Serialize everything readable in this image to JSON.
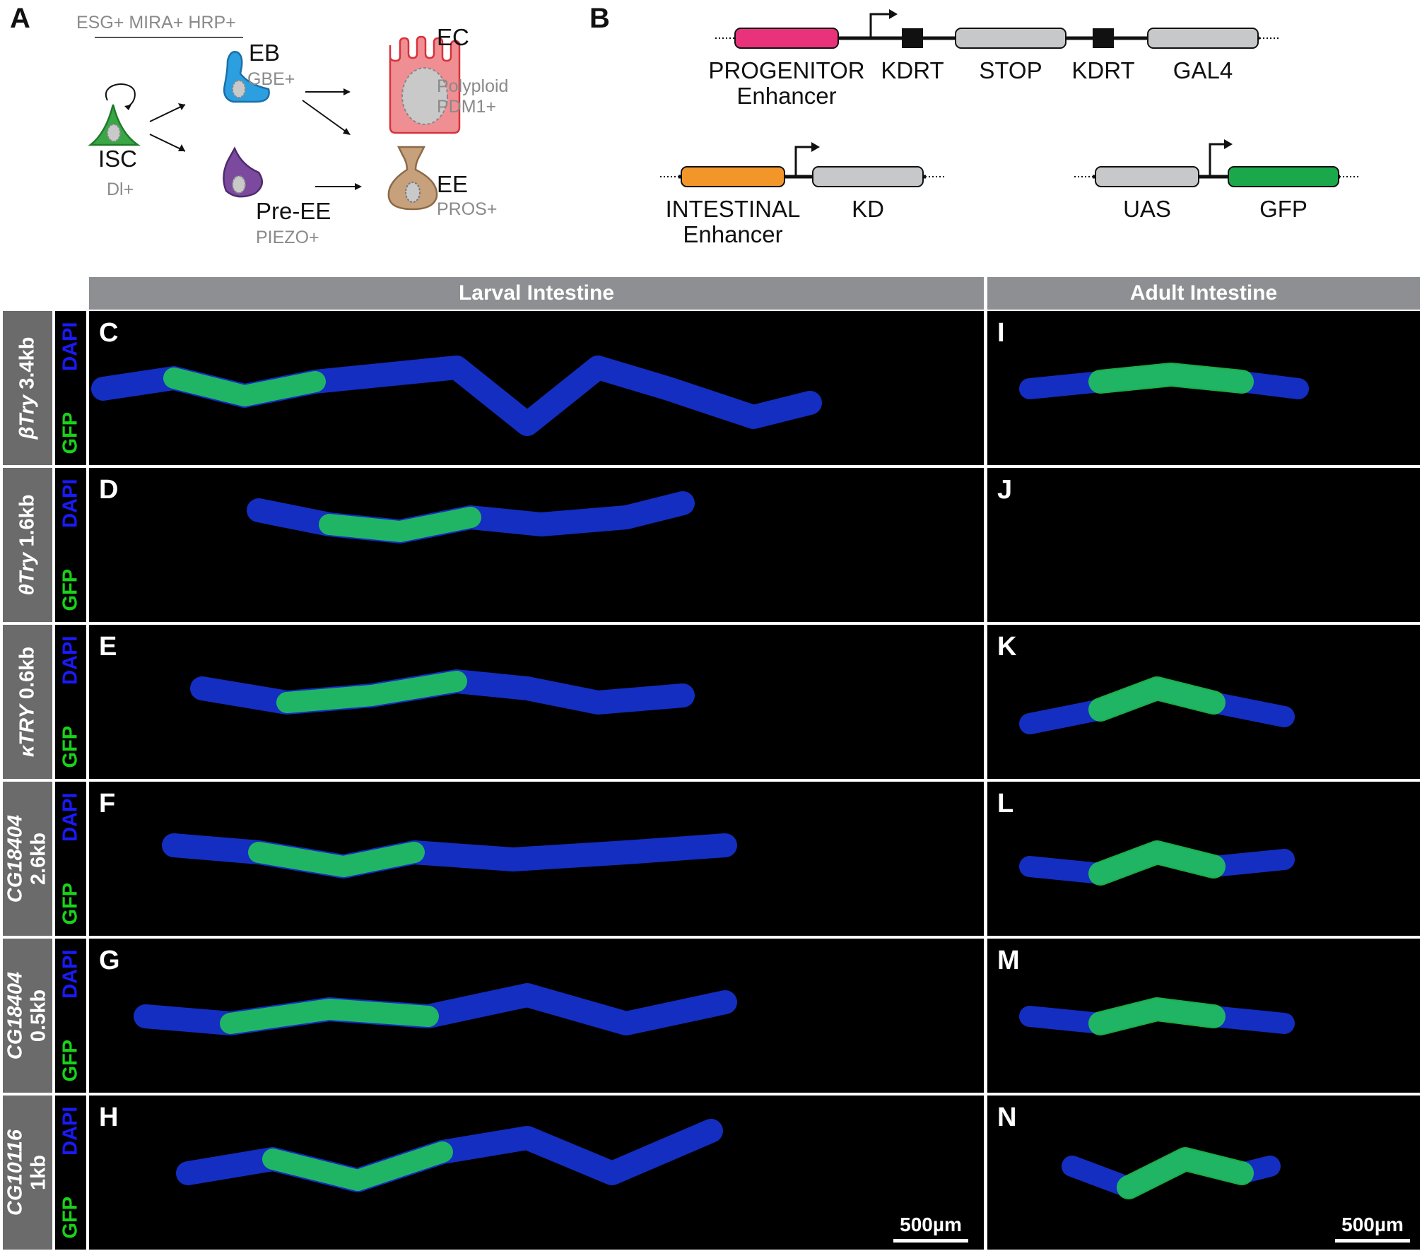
{
  "panel_a": {
    "label": "A",
    "progenitor_markers": "ESG+ MIRA+ HRP+",
    "cells": [
      {
        "name": "ISC",
        "marker": "Dl+"
      },
      {
        "name": "EB",
        "marker": "GBE+"
      },
      {
        "name": "Pre-EE",
        "marker": "PIEZO+"
      },
      {
        "name": "EC",
        "marker": "Polyploid\nPDM1+"
      },
      {
        "name": "EE",
        "marker": "PROS+"
      }
    ],
    "colors": {
      "isc": "#3aa645",
      "eb": "#2b9fe0",
      "pre_ee": "#7b4a9e",
      "ec": "#f08f93",
      "ee": "#c7a07c"
    }
  },
  "panel_b": {
    "label": "B",
    "constructs": [
      {
        "elements": [
          "PROGENITOR\nEnhancer",
          "KDRT",
          "STOP",
          "KDRT",
          "GAL4"
        ]
      },
      {
        "elements": [
          "INTESTINAL\nEnhancer",
          "KD"
        ]
      },
      {
        "elements": [
          "UAS",
          "GFP"
        ]
      }
    ],
    "colors": {
      "progenitor": "#e8337a",
      "intestinal": "#f3962a",
      "gfp": "#1aa84a",
      "grey_box": "#c7c8ca"
    }
  },
  "headers": {
    "larval": "Larval Intestine",
    "adult": "Adult Intestine"
  },
  "channels": {
    "dapi": "DAPI",
    "gfp": "GFP",
    "dapi_color": "#1a1aff",
    "gfp_color": "#19d219"
  },
  "rows": [
    {
      "gene": "βTry",
      "size": "3.4kb",
      "larval": "C",
      "adult": "I"
    },
    {
      "gene": "θTry",
      "size": "1.6kb",
      "larval": "D",
      "adult": "J"
    },
    {
      "gene": "κTRY",
      "size": "0.6kb",
      "larval": "E",
      "adult": "K"
    },
    {
      "gene": "CG18404",
      "size": "2.6kb",
      "larval": "F",
      "adult": "L"
    },
    {
      "gene": "CG18404",
      "size": "0.5kb",
      "larval": "G",
      "adult": "M"
    },
    {
      "gene": "CG10116",
      "size": "1kb",
      "larval": "H",
      "adult": "N"
    }
  ],
  "scale_bar": "500µm"
}
